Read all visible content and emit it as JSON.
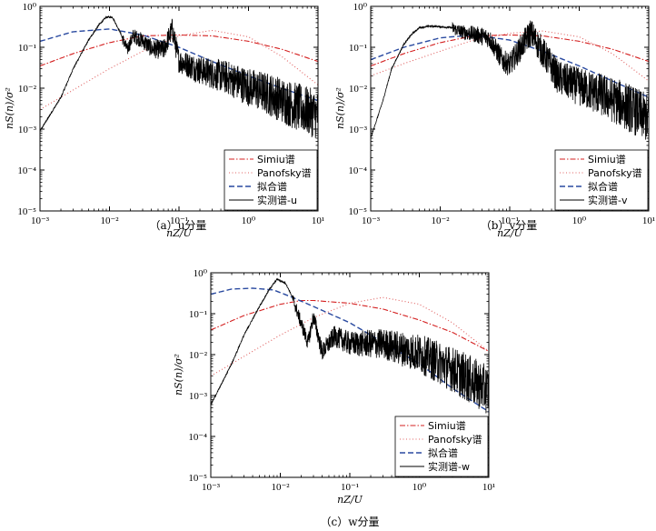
{
  "chart_data": [
    {
      "type": "line",
      "panel": "a",
      "caption": "（a）u分量",
      "xlabel": "nZ/U",
      "ylabel": "nS(n)/σ²",
      "xscale": "log",
      "yscale": "log",
      "xlim": [
        0.001,
        10
      ],
      "ylim": [
        1e-05,
        1
      ],
      "xticks": [
        "10⁻³",
        "10⁻²",
        "10⁻¹",
        "10⁰",
        "10¹"
      ],
      "yticks": [
        "10⁰",
        "10⁻¹",
        "10⁻²",
        "10⁻³",
        "10⁻⁴",
        "10⁻⁵"
      ],
      "legend_position": "bottom-right",
      "series": [
        {
          "name": "Simiu谱",
          "style": "dashdot",
          "color": "#d42020",
          "x": [
            0.001,
            0.003,
            0.01,
            0.03,
            0.1,
            0.3,
            1,
            3,
            10
          ],
          "y": [
            0.035,
            0.07,
            0.13,
            0.19,
            0.2,
            0.19,
            0.14,
            0.09,
            0.045
          ]
        },
        {
          "name": "Panofsky谱",
          "style": "dotted",
          "color": "#e06060",
          "x": [
            0.001,
            0.003,
            0.01,
            0.03,
            0.1,
            0.3,
            1,
            3,
            10
          ],
          "y": [
            0.003,
            0.009,
            0.03,
            0.08,
            0.19,
            0.26,
            0.18,
            0.06,
            0.012
          ]
        },
        {
          "name": "拟合谱",
          "style": "dashed",
          "color": "#2a4aa0",
          "x": [
            0.001,
            0.003,
            0.01,
            0.03,
            0.1,
            0.3,
            1,
            3,
            10
          ],
          "y": [
            0.14,
            0.24,
            0.28,
            0.2,
            0.1,
            0.045,
            0.02,
            0.01,
            0.005
          ]
        },
        {
          "name": "实测谱-u",
          "style": "solid",
          "color": "#000000",
          "x": [
            0.001,
            0.002,
            0.003,
            0.005,
            0.007,
            0.009,
            0.011,
            0.014,
            0.018,
            0.022,
            0.03,
            0.04,
            0.06,
            0.08,
            0.1,
            0.2,
            0.5,
            1,
            2,
            5,
            10
          ],
          "y": [
            0.0009,
            0.006,
            0.03,
            0.15,
            0.35,
            0.55,
            0.55,
            0.25,
            0.09,
            0.2,
            0.15,
            0.1,
            0.09,
            0.3,
            0.05,
            0.03,
            0.02,
            0.012,
            0.008,
            0.004,
            0.0025
          ]
        }
      ]
    },
    {
      "type": "line",
      "panel": "b",
      "caption": "（b）v分量",
      "xlabel": "nZ/U",
      "ylabel": "nS(n)/σ²",
      "xscale": "log",
      "yscale": "log",
      "xlim": [
        0.001,
        10
      ],
      "ylim": [
        1e-05,
        1
      ],
      "xticks": [
        "10⁻³",
        "10⁻²",
        "10⁻¹",
        "10⁰",
        "10¹"
      ],
      "yticks": [
        "10⁰",
        "10⁻¹",
        "10⁻²",
        "10⁻³",
        "10⁻⁴",
        "10⁻⁵"
      ],
      "legend_position": "bottom-right",
      "series": [
        {
          "name": "Simiu谱",
          "style": "dashdot",
          "color": "#d42020",
          "x": [
            0.001,
            0.003,
            0.01,
            0.03,
            0.1,
            0.3,
            1,
            3,
            10
          ],
          "y": [
            0.035,
            0.07,
            0.13,
            0.19,
            0.2,
            0.19,
            0.14,
            0.09,
            0.045
          ]
        },
        {
          "name": "Panofsky谱",
          "style": "dotted",
          "color": "#e06060",
          "x": [
            0.001,
            0.003,
            0.01,
            0.03,
            0.1,
            0.3,
            1,
            3,
            10
          ],
          "y": [
            0.02,
            0.04,
            0.08,
            0.15,
            0.22,
            0.25,
            0.18,
            0.07,
            0.015
          ]
        },
        {
          "name": "拟合谱",
          "style": "dashed",
          "color": "#2a4aa0",
          "x": [
            0.001,
            0.003,
            0.01,
            0.03,
            0.1,
            0.3,
            1,
            3,
            10
          ],
          "y": [
            0.05,
            0.1,
            0.17,
            0.2,
            0.15,
            0.08,
            0.035,
            0.015,
            0.006
          ]
        },
        {
          "name": "实测谱-v",
          "style": "solid",
          "color": "#000000",
          "x": [
            0.001,
            0.0015,
            0.002,
            0.003,
            0.004,
            0.005,
            0.007,
            0.01,
            0.015,
            0.02,
            0.03,
            0.05,
            0.08,
            0.1,
            0.2,
            0.5,
            1,
            2,
            5,
            10
          ],
          "y": [
            0.0006,
            0.005,
            0.03,
            0.12,
            0.22,
            0.3,
            0.33,
            0.32,
            0.3,
            0.25,
            0.22,
            0.18,
            0.05,
            0.04,
            0.25,
            0.02,
            0.012,
            0.008,
            0.004,
            0.002
          ]
        }
      ]
    },
    {
      "type": "line",
      "panel": "c",
      "caption": "（c）w分量",
      "xlabel": "nZ/U",
      "ylabel": "nS(n)/σ²",
      "xscale": "log",
      "yscale": "log",
      "xlim": [
        0.001,
        10
      ],
      "ylim": [
        1e-05,
        1
      ],
      "xticks": [
        "10⁻³",
        "10⁻²",
        "10⁻¹",
        "10⁰",
        "10¹"
      ],
      "yticks": [
        "10⁰",
        "10⁻¹",
        "10⁻²",
        "10⁻³",
        "10⁻⁴",
        "10⁻⁵"
      ],
      "legend_position": "bottom-right",
      "series": [
        {
          "name": "Simiu谱",
          "style": "dashdot",
          "color": "#d42020",
          "x": [
            0.001,
            0.003,
            0.01,
            0.02,
            0.03,
            0.1,
            0.3,
            1,
            3,
            10
          ],
          "y": [
            0.04,
            0.09,
            0.17,
            0.21,
            0.21,
            0.18,
            0.13,
            0.07,
            0.035,
            0.012
          ]
        },
        {
          "name": "Panofsky谱",
          "style": "dotted",
          "color": "#e06060",
          "x": [
            0.001,
            0.003,
            0.01,
            0.03,
            0.1,
            0.3,
            1,
            3,
            10
          ],
          "y": [
            0.003,
            0.009,
            0.03,
            0.08,
            0.18,
            0.25,
            0.17,
            0.06,
            0.012
          ]
        },
        {
          "name": "拟合谱",
          "style": "dashed",
          "color": "#2a4aa0",
          "x": [
            0.001,
            0.002,
            0.004,
            0.008,
            0.015,
            0.03,
            0.1,
            0.3,
            1,
            3,
            10
          ],
          "y": [
            0.3,
            0.4,
            0.42,
            0.38,
            0.25,
            0.15,
            0.06,
            0.02,
            0.006,
            0.0015,
            0.0004
          ]
        },
        {
          "name": "实测谱-w",
          "style": "solid",
          "color": "#000000",
          "x": [
            0.001,
            0.002,
            0.003,
            0.005,
            0.007,
            0.009,
            0.012,
            0.015,
            0.02,
            0.025,
            0.03,
            0.04,
            0.06,
            0.1,
            0.3,
            1,
            3,
            10
          ],
          "y": [
            0.0006,
            0.006,
            0.03,
            0.15,
            0.4,
            0.7,
            0.55,
            0.25,
            0.06,
            0.02,
            0.09,
            0.012,
            0.03,
            0.02,
            0.02,
            0.012,
            0.005,
            0.0015
          ]
        }
      ]
    }
  ]
}
